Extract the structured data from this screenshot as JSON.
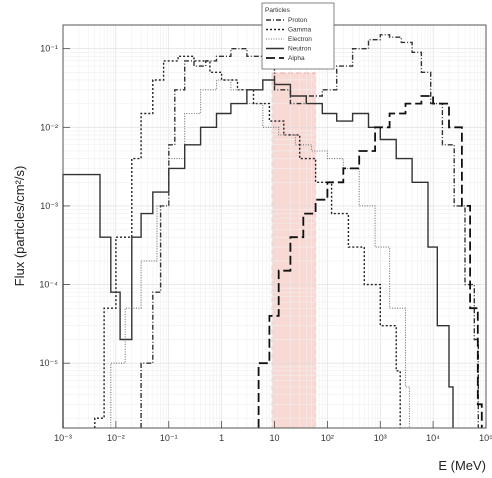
{
  "chart_data": {
    "type": "line",
    "xlabel": "E (MeV)",
    "ylabel": "Flux (particles/cm²/s)",
    "x_scale": "log",
    "y_scale": "log",
    "xlim": [
      0.001,
      100000
    ],
    "ylim": [
      1.5e-06,
      0.2
    ],
    "x_ticks": [
      {
        "value": 0.001,
        "label": "10⁻³"
      },
      {
        "value": 0.01,
        "label": "10⁻²"
      },
      {
        "value": 0.1,
        "label": "10⁻¹"
      },
      {
        "value": 1,
        "label": "1"
      },
      {
        "value": 10,
        "label": "10"
      },
      {
        "value": 100,
        "label": "10²"
      },
      {
        "value": 1000,
        "label": "10³"
      },
      {
        "value": 10000,
        "label": "10⁴"
      },
      {
        "value": 100000,
        "label": "10⁵"
      }
    ],
    "y_ticks": [
      {
        "value": 1e-05,
        "label": "10⁻⁵"
      },
      {
        "value": 0.0001,
        "label": "10⁻⁴"
      },
      {
        "value": 0.001,
        "label": "10⁻³"
      },
      {
        "value": 0.01,
        "label": "10⁻²"
      },
      {
        "value": 0.1,
        "label": "10⁻¹"
      }
    ],
    "grid": true,
    "legend": {
      "title": "Particles",
      "position": "top-center"
    },
    "highlight_band": {
      "x_from": 9,
      "x_to": 60,
      "color": "#f4b9b0"
    },
    "series": [
      {
        "name": "Proton",
        "style": "dash-dot",
        "points": [
          [
            0.03,
            1e-05
          ],
          [
            0.05,
            8e-05
          ],
          [
            0.07,
            0.001
          ],
          [
            0.1,
            0.006
          ],
          [
            0.13,
            0.03
          ],
          [
            0.2,
            0.07
          ],
          [
            0.3,
            0.06
          ],
          [
            0.5,
            0.07
          ],
          [
            0.8,
            0.08
          ],
          [
            1.5,
            0.1
          ],
          [
            3,
            0.08
          ],
          [
            6,
            0.06
          ],
          [
            10,
            0.03
          ],
          [
            20,
            0.02
          ],
          [
            40,
            0.025
          ],
          [
            80,
            0.03
          ],
          [
            150,
            0.06
          ],
          [
            300,
            0.1
          ],
          [
            600,
            0.13
          ],
          [
            1000,
            0.15
          ],
          [
            1500,
            0.14
          ],
          [
            2500,
            0.12
          ],
          [
            4000,
            0.09
          ],
          [
            6000,
            0.05
          ],
          [
            9000,
            0.02
          ],
          [
            15000,
            0.006
          ],
          [
            25000,
            0.001
          ],
          [
            40000,
            0.0001
          ],
          [
            60000,
            2e-05
          ]
        ]
      },
      {
        "name": "Gamma",
        "style": "short-dash",
        "points": [
          [
            0.004,
            2e-06
          ],
          [
            0.006,
            5e-05
          ],
          [
            0.01,
            0.0004
          ],
          [
            0.02,
            0.004
          ],
          [
            0.03,
            0.015
          ],
          [
            0.05,
            0.04
          ],
          [
            0.08,
            0.07
          ],
          [
            0.15,
            0.08
          ],
          [
            0.3,
            0.07
          ],
          [
            0.6,
            0.05
          ],
          [
            1,
            0.04
          ],
          [
            2,
            0.03
          ],
          [
            4,
            0.02
          ],
          [
            8,
            0.012
          ],
          [
            15,
            0.008
          ],
          [
            30,
            0.004
          ],
          [
            60,
            0.002
          ],
          [
            120,
            0.0008
          ],
          [
            250,
            0.0003
          ],
          [
            500,
            0.0001
          ],
          [
            1000,
            3e-05
          ],
          [
            2000,
            8e-06
          ]
        ]
      },
      {
        "name": "Electron",
        "style": "dotted",
        "points": [
          [
            0.008,
            1e-05
          ],
          [
            0.015,
            5e-05
          ],
          [
            0.03,
            0.0002
          ],
          [
            0.06,
            0.001
          ],
          [
            0.1,
            0.004
          ],
          [
            0.2,
            0.015
          ],
          [
            0.4,
            0.03
          ],
          [
            0.8,
            0.04
          ],
          [
            1.5,
            0.03
          ],
          [
            3,
            0.02
          ],
          [
            6,
            0.01
          ],
          [
            12,
            0.008
          ],
          [
            25,
            0.006
          ],
          [
            50,
            0.005
          ],
          [
            100,
            0.004
          ],
          [
            200,
            0.003
          ],
          [
            400,
            0.001
          ],
          [
            800,
            0.0003
          ],
          [
            1500,
            5e-05
          ],
          [
            3000,
            5e-06
          ]
        ]
      },
      {
        "name": "Neutron",
        "style": "solid-thin",
        "points": [
          [
            0.001,
            0.0025
          ],
          [
            0.005,
            0.0004
          ],
          [
            0.008,
            8e-05
          ],
          [
            0.012,
            2e-05
          ],
          [
            0.02,
            0.0004
          ],
          [
            0.03,
            0.0008
          ],
          [
            0.05,
            0.0015
          ],
          [
            0.1,
            0.003
          ],
          [
            0.2,
            0.006
          ],
          [
            0.4,
            0.01
          ],
          [
            0.8,
            0.015
          ],
          [
            1.5,
            0.02
          ],
          [
            3,
            0.03
          ],
          [
            6,
            0.04
          ],
          [
            10,
            0.035
          ],
          [
            20,
            0.025
          ],
          [
            40,
            0.02
          ],
          [
            80,
            0.015
          ],
          [
            150,
            0.012
          ],
          [
            300,
            0.015
          ],
          [
            600,
            0.01
          ],
          [
            1000,
            0.007
          ],
          [
            2000,
            0.004
          ],
          [
            4000,
            0.002
          ],
          [
            8000,
            0.0003
          ],
          [
            12000,
            3e-05
          ],
          [
            20000,
            5e-06
          ]
        ]
      },
      {
        "name": "Alpha",
        "style": "long-dash",
        "points": [
          [
            5,
            1e-05
          ],
          [
            8,
            4e-05
          ],
          [
            12,
            0.00015
          ],
          [
            20,
            0.0004
          ],
          [
            35,
            0.0008
          ],
          [
            60,
            0.0012
          ],
          [
            100,
            0.002
          ],
          [
            200,
            0.003
          ],
          [
            400,
            0.005
          ],
          [
            800,
            0.01
          ],
          [
            1500,
            0.015
          ],
          [
            3000,
            0.02
          ],
          [
            6000,
            0.025
          ],
          [
            10000,
            0.02
          ],
          [
            20000,
            0.01
          ],
          [
            35000,
            0.001
          ],
          [
            50000,
            5e-05
          ],
          [
            70000,
            3e-06
          ]
        ]
      }
    ]
  }
}
